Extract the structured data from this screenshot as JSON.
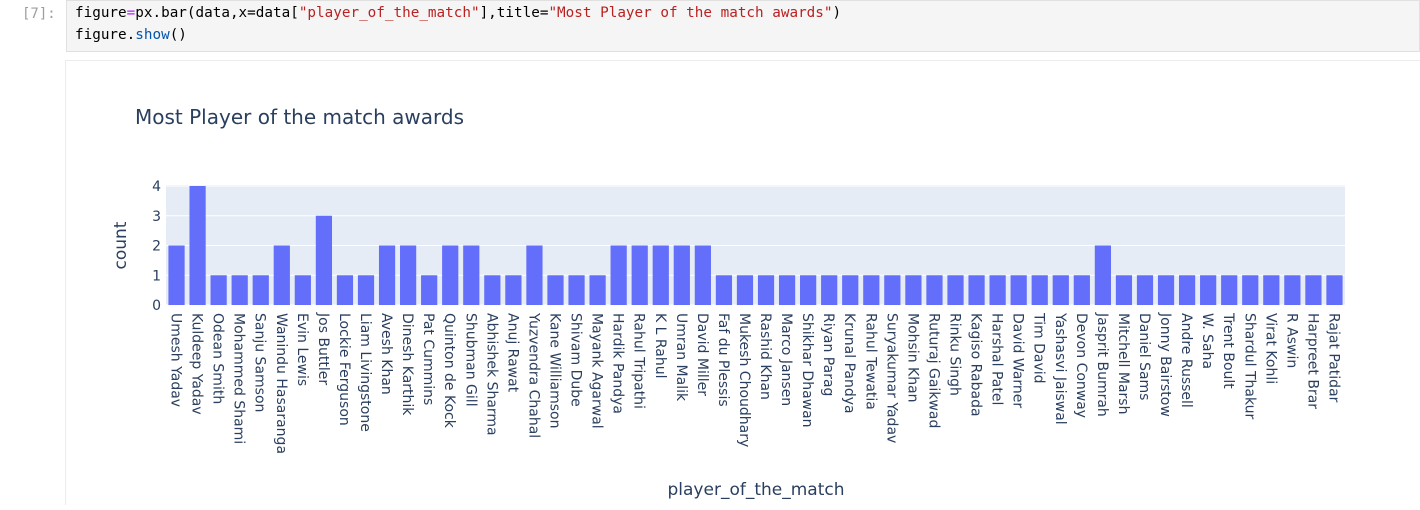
{
  "cell": {
    "prompt": "[7]:",
    "line1": {
      "var": "figure",
      "eq": "=",
      "call": "px.bar(data,x=data[",
      "str1": "\"player_of_the_match\"",
      "mid": "],title=",
      "str2": "\"Most Player of the match awards\"",
      "end": ")"
    },
    "line2": {
      "obj": "figure.",
      "method": "show",
      "end": "()"
    }
  },
  "colors": {
    "bar": "#636efa",
    "plot_bg": "#e5ecf6",
    "grid": "#ffffff",
    "text": "#2a3f5f"
  },
  "chart_data": {
    "type": "bar",
    "title": "Most Player of the match awards",
    "xlabel": "player_of_the_match",
    "ylabel": "count",
    "ylim": [
      0,
      4
    ],
    "yticks": [
      0,
      1,
      2,
      3,
      4
    ],
    "grid": true,
    "categories": [
      "Umesh Yadav",
      "Kuldeep Yadav",
      "Odean Smith",
      "Mohammed Shami",
      "Sanju Samson",
      "Wanindu Hasaranga",
      "Evin Lewis",
      "Jos Buttler",
      "Lockie Ferguson",
      "Liam Livingstone",
      "Avesh Khan",
      "Dinesh Karthik",
      "Pat Cummins",
      "Quinton de Kock",
      "Shubman Gill",
      "Abhishek Sharma",
      "Anuj Rawat",
      "Yuzvendra Chahal",
      "Kane Williamson",
      "Shivam Dube",
      "Mayank Agarwal",
      "Hardik Pandya",
      "Rahul Tripathi",
      "K L Rahul",
      "Umran Malik",
      "David Miller",
      "Faf du Plessis",
      "Mukesh Choudhary",
      "Rashid Khan",
      "Marco Jansen",
      "Shikhar Dhawan",
      "Riyan Parag",
      "Krunal Pandya",
      "Rahul Tewatia",
      "Suryakumar Yadav",
      "Mohsin Khan",
      "Ruturaj Gaikwad",
      "Rinku Singh",
      "Kagiso Rabada",
      "Harshal Patel",
      "David Warner",
      "Tim David",
      "Yashasvi Jaiswal",
      "Devon Conway",
      "Jasprit Bumrah",
      "Mitchell Marsh",
      "Daniel Sams",
      "Jonny Bairstow",
      "Andre Russell",
      "W. Saha",
      "Trent Boult",
      "Shardul Thakur",
      "Virat Kohli",
      "R Aswin",
      "Harpreet Brar",
      "Rajat Patidar"
    ],
    "values": [
      2,
      4,
      1,
      1,
      1,
      2,
      1,
      3,
      1,
      1,
      2,
      2,
      1,
      2,
      2,
      1,
      1,
      2,
      1,
      1,
      1,
      2,
      2,
      2,
      2,
      2,
      1,
      1,
      1,
      1,
      1,
      1,
      1,
      1,
      1,
      1,
      1,
      1,
      1,
      1,
      1,
      1,
      1,
      1,
      2,
      1,
      1,
      1,
      1,
      1,
      1,
      1,
      1,
      1,
      1,
      1
    ]
  }
}
